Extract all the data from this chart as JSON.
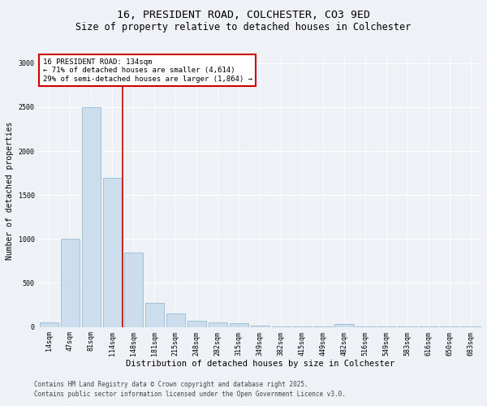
{
  "title_line1": "16, PRESIDENT ROAD, COLCHESTER, CO3 9ED",
  "title_line2": "Size of property relative to detached houses in Colchester",
  "xlabel": "Distribution of detached houses by size in Colchester",
  "ylabel": "Number of detached properties",
  "categories": [
    "14sqm",
    "47sqm",
    "81sqm",
    "114sqm",
    "148sqm",
    "181sqm",
    "215sqm",
    "248sqm",
    "282sqm",
    "315sqm",
    "349sqm",
    "382sqm",
    "415sqm",
    "449sqm",
    "482sqm",
    "516sqm",
    "549sqm",
    "583sqm",
    "616sqm",
    "650sqm",
    "683sqm"
  ],
  "values": [
    50,
    1000,
    2500,
    1700,
    850,
    270,
    150,
    70,
    55,
    40,
    15,
    10,
    10,
    5,
    30,
    5,
    5,
    5,
    3,
    3,
    3
  ],
  "bar_color": "#ccdded",
  "bar_edge_color": "#8ab4cc",
  "annotation_text": "16 PRESIDENT ROAD: 134sqm\n← 71% of detached houses are smaller (4,614)\n29% of semi-detached houses are larger (1,864) →",
  "annotation_box_color": "#ffffff",
  "annotation_box_edge_color": "#cc0000",
  "vline_color": "#cc0000",
  "ylim": [
    0,
    3100
  ],
  "yticks": [
    0,
    500,
    1000,
    1500,
    2000,
    2500,
    3000
  ],
  "background_color": "#eef2f7",
  "plot_background_color": "#eef2f7",
  "grid_color": "#ffffff",
  "footer_line1": "Contains HM Land Registry data © Crown copyright and database right 2025.",
  "footer_line2": "Contains public sector information licensed under the Open Government Licence v3.0.",
  "title_fontsize": 9.5,
  "subtitle_fontsize": 8.5,
  "axis_label_fontsize": 7,
  "tick_fontsize": 6,
  "annotation_fontsize": 6.5,
  "footer_fontsize": 5.5,
  "vline_x": 3.5
}
